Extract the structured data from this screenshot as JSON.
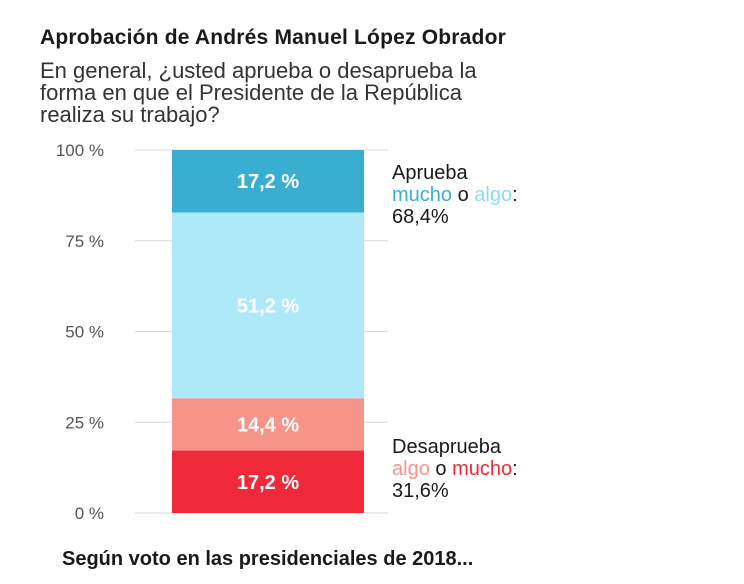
{
  "title": "Aprobación de Andrés Manuel López Obrador",
  "subtitle_lines": [
    "En general, ¿usted aprueba o desaprueba la",
    "forma en que el Presidente de la República",
    "realiza su trabajo?"
  ],
  "chart_data": {
    "type": "bar",
    "stacked": true,
    "categories": [
      ""
    ],
    "ylim": [
      0,
      100
    ],
    "ytick_labels": [
      "0 %",
      "25 %",
      "50 %",
      "75 %",
      "100 %"
    ],
    "yticks": [
      0,
      25,
      50,
      75,
      100
    ],
    "grid": true,
    "series": [
      {
        "value": 17.2,
        "label": "17,2 %",
        "color": "#f0293a"
      },
      {
        "value": 14.4,
        "label": "14,4 %",
        "color": "#f7948a"
      },
      {
        "value": 51.2,
        "label": "51,2 %",
        "color": "#aee9fa"
      },
      {
        "value": 17.2,
        "label": "17,2 %",
        "color": "#3aaed0"
      }
    ]
  },
  "annotations": {
    "approve": {
      "line1": "Aprueba",
      "word_a": "mucho",
      "word_a_color": "#3aaed0",
      "connector": "o",
      "word_b": "algo",
      "word_b_color": "#8fd9f0",
      "colon": ":",
      "total": "68,4%"
    },
    "disapprove": {
      "line1": "Desaprueba",
      "word_a": "algo",
      "word_a_color": "#f7948a",
      "connector": "o",
      "word_b": "mucho",
      "word_b_color": "#f0293a",
      "colon": ":",
      "total": "31,6%"
    }
  },
  "footer": "Según voto en las presidenciales de 2018..."
}
